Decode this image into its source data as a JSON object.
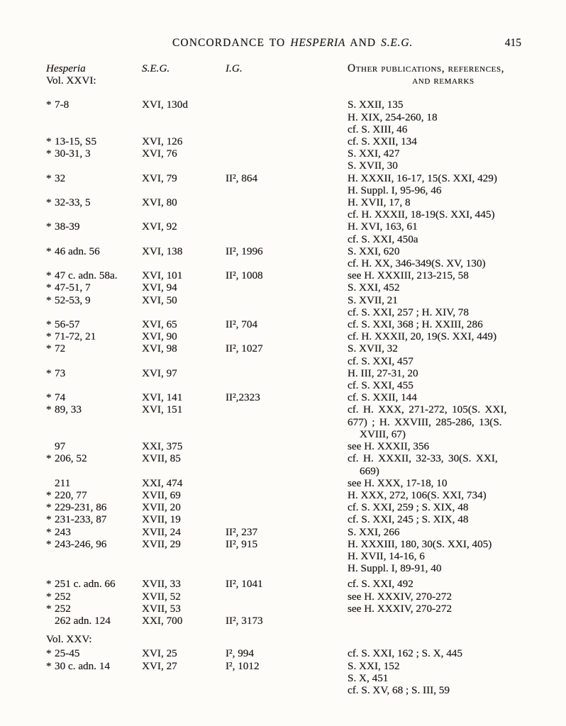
{
  "page": {
    "number": "415",
    "ink_color": "#211d19",
    "paper_color": "#fdfcf9"
  },
  "running_head": {
    "title_parts": [
      {
        "text": "CONCORDANCE TO ",
        "italic": false
      },
      {
        "text": "HESPERIA",
        "italic": true
      },
      {
        "text": " AND ",
        "italic": false
      },
      {
        "text": "S.E.G.",
        "italic": true
      }
    ]
  },
  "column_headers": {
    "hesperia": "Hesperia",
    "seg": "S.E.G.",
    "ig": "I.G.",
    "other_line1": "Other publications, references,",
    "other_line2": "and remarks"
  },
  "star_symbol": "*",
  "sections": [
    {
      "volume_label": "Vol. XXVI:",
      "label_in_header": true,
      "entries": [
        {
          "starred": true,
          "ref": "7-8",
          "seg": "XVI, 130d",
          "ig": "",
          "remarks": [
            "S. XXII, 135",
            "H. XIX, 254-260, 18",
            "cf. S. XIII, 46"
          ]
        },
        {
          "starred": true,
          "ref": "13-15, S5",
          "seg": "XVI, 126",
          "ig": "",
          "remarks": [
            "cf. S. XXII, 134"
          ]
        },
        {
          "starred": true,
          "ref": "30-31, 3",
          "seg": "XVI, 76",
          "ig": "",
          "remarks": [
            "S. XXI, 427",
            "S. XVII, 30"
          ]
        },
        {
          "starred": true,
          "ref": "32",
          "seg": "XVI, 79",
          "ig": "II², 864",
          "remarks": [
            "H. XXXII, 16-17, 15(S. XXI, 429)",
            "H. Suppl. I, 95-96, 46"
          ]
        },
        {
          "starred": true,
          "ref": "32-33, 5",
          "seg": "XVI, 80",
          "ig": "",
          "remarks": [
            "H. XVII, 17, 8",
            "cf. H. XXXII, 18-19(S. XXI, 445)"
          ]
        },
        {
          "starred": true,
          "ref": "38-39",
          "seg": "XVI, 92",
          "ig": "",
          "remarks": [
            "H. XVI, 163, 61",
            "cf. S. XXI, 450a"
          ]
        },
        {
          "starred": true,
          "ref": "46 adn. 56",
          "seg": "XVI, 138",
          "ig": "II², 1996",
          "remarks": [
            "S. XXI, 620",
            "cf. H. XX, 346-349(S. XV, 130)"
          ]
        },
        {
          "starred": true,
          "ref": "47 c. adn. 58a.",
          "seg": "XVI, 101",
          "ig": "II², 1008",
          "remarks": [
            "see H. XXXIII, 213-215, 58"
          ]
        },
        {
          "starred": true,
          "ref": "47-51, 7",
          "seg": "XVI, 94",
          "ig": "",
          "remarks": [
            "S. XXI, 452"
          ]
        },
        {
          "starred": true,
          "ref": "52-53, 9",
          "seg": "XVI, 50",
          "ig": "",
          "remarks": [
            "S. XVII, 21",
            "cf. S. XXI, 257 ; H. XIV, 78"
          ]
        },
        {
          "starred": true,
          "ref": "56-57",
          "seg": "XVI, 65",
          "ig": "II², 704",
          "remarks": [
            "cf. S. XXI, 368 ; H. XXIII, 286"
          ]
        },
        {
          "starred": true,
          "ref": "71-72, 21",
          "seg": "XVI, 90",
          "ig": "",
          "remarks": [
            "cf. H. XXXII, 20, 19(S. XXI, 449)"
          ]
        },
        {
          "starred": true,
          "ref": "72",
          "seg": "XVI, 98",
          "ig": "II², 1027",
          "remarks": [
            "S. XVII, 32",
            "cf. S. XXI, 457"
          ]
        },
        {
          "starred": true,
          "ref": "73",
          "seg": "XVI, 97",
          "ig": "",
          "remarks": [
            "H. III, 27-31, 20",
            "cf. S. XXI, 455"
          ]
        },
        {
          "starred": true,
          "ref": "74",
          "seg": "XVI, 141",
          "ig": "II²,2323",
          "remarks": [
            "cf. S. XXII, 144"
          ]
        },
        {
          "starred": true,
          "ref": "89, 33",
          "seg": "XVI, 151",
          "ig": "",
          "remarks": [
            {
              "text": "cf. H. XXX, 271-272, 105(S. XXI,",
              "wide": true
            },
            {
              "text": "677) ; H. XXVIII, 285-286, 13(S.",
              "wide": true
            },
            {
              "text": "XVIII, 67)",
              "indent": true
            }
          ]
        },
        {
          "starred": false,
          "ref": "97",
          "seg": "XXI, 375",
          "ig": "",
          "remarks": [
            "see H. XXXII, 356"
          ]
        },
        {
          "starred": true,
          "ref": "206, 52",
          "seg": "XVII, 85",
          "ig": "",
          "remarks": [
            {
              "text": "cf. H. XXXII, 32-33, 30(S. XXI,",
              "wide": true
            },
            {
              "text": "669)",
              "indent": true
            }
          ]
        },
        {
          "starred": false,
          "ref": "211",
          "seg": "XXI, 474",
          "ig": "",
          "remarks": [
            "see H. XXX, 17-18, 10"
          ]
        },
        {
          "starred": true,
          "ref": "220, 77",
          "seg": "XVII, 69",
          "ig": "",
          "remarks": [
            "H. XXX, 272, 106(S. XXI, 734)"
          ]
        },
        {
          "starred": true,
          "ref": "229-231, 86",
          "seg": "XVII, 20",
          "ig": "",
          "remarks": [
            "cf. S. XXI, 259 ; S. XIX, 48"
          ]
        },
        {
          "starred": true,
          "ref": "231-233, 87",
          "seg": "XVII, 19",
          "ig": "",
          "remarks": [
            "cf. S. XXI, 245 ; S. XIX, 48"
          ]
        },
        {
          "starred": true,
          "ref": "243",
          "seg": "XVII, 24",
          "ig": "II², 237",
          "remarks": [
            "S. XXI, 266"
          ]
        },
        {
          "starred": true,
          "ref": "243-246, 96",
          "seg": "XVII, 29",
          "ig": "II², 915",
          "remarks": [
            "H. XXXIII, 180, 30(S. XXI, 405)",
            "H. XVII, 14-16, 6",
            "H. Suppl. I, 89-91, 40"
          ]
        },
        {
          "starred": true,
          "ref": "251 c. adn. 66",
          "seg": "XVII, 33",
          "ig": "II², 1041",
          "remarks": [
            "cf. S. XXI, 492"
          ],
          "gap": true
        },
        {
          "starred": true,
          "ref": "252",
          "seg": "XVII, 52",
          "ig": "",
          "remarks": [
            "see H. XXXIV, 270-272"
          ]
        },
        {
          "starred": true,
          "ref": "252",
          "seg": "XVII, 53",
          "ig": "",
          "remarks": [
            "see H. XXXIV, 270-272"
          ]
        },
        {
          "starred": false,
          "ref": "262 adn. 124",
          "seg": "XXI, 700",
          "ig": "II², 3173",
          "remarks": []
        }
      ]
    },
    {
      "volume_label": "Vol. XXV:",
      "label_in_header": false,
      "entries": [
        {
          "starred": true,
          "ref": "25-45",
          "seg": "XVI, 25",
          "ig": "I², 994",
          "remarks": [
            "cf. S. XXI, 162 ; S. X, 445"
          ]
        },
        {
          "starred": true,
          "ref": "30 c. adn. 14",
          "seg": "XVI, 27",
          "ig": "I², 1012",
          "remarks": [
            "S. XXI, 152",
            "S. X, 451",
            "cf. S. XV, 68 ; S. III, 59"
          ]
        }
      ]
    }
  ]
}
